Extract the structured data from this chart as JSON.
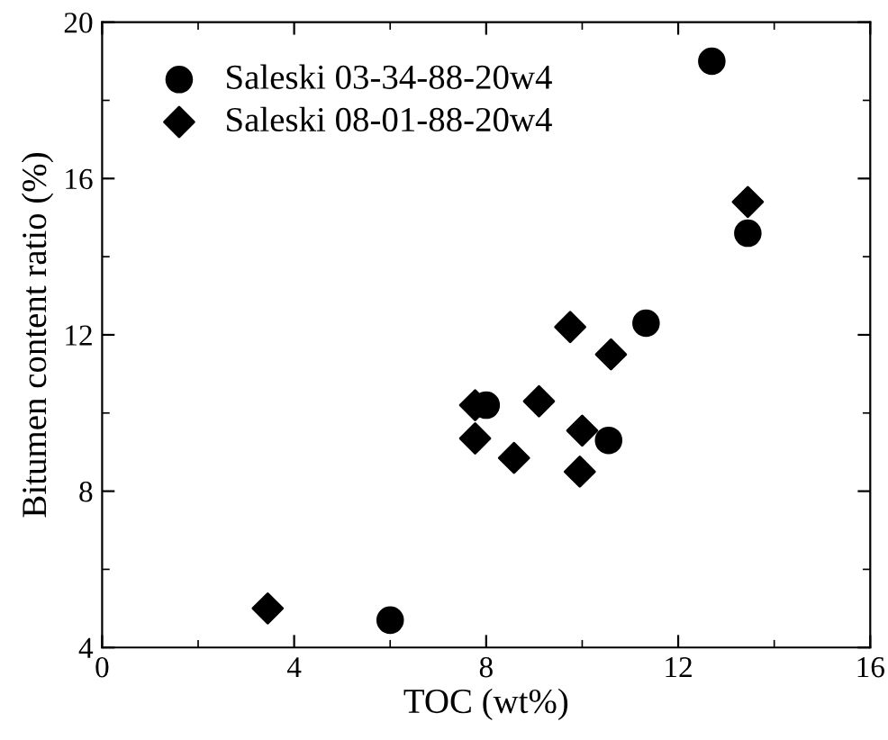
{
  "chart_data": {
    "type": "scatter",
    "xlabel": "TOC (wt%)",
    "ylabel": "Bitumen content ratio (%)",
    "xlim": [
      0,
      16
    ],
    "xticks": [
      0,
      4,
      8,
      12,
      16
    ],
    "ylim": [
      4,
      20
    ],
    "yticks": [
      4,
      8,
      12,
      16,
      20
    ],
    "grid": false,
    "legend": "top left",
    "series": [
      {
        "name": "Saleski 03-34-88-20w4",
        "color": "#000000",
        "marker": "circle",
        "x": [
          12.7,
          13.45,
          11.33,
          8.0,
          10.55,
          6.0
        ],
        "values": [
          19.0,
          14.6,
          12.3,
          10.2,
          9.3,
          4.7
        ]
      },
      {
        "name": "Saleski 08-01-88-20w4",
        "color": "#000000",
        "marker": "diamond",
        "x": [
          13.45,
          9.75,
          10.6,
          7.77,
          9.1,
          7.77,
          8.58,
          10.0,
          9.95,
          3.45
        ],
        "values": [
          15.4,
          12.2,
          11.5,
          10.2,
          10.3,
          9.35,
          8.85,
          9.55,
          8.5,
          5.0
        ]
      }
    ]
  }
}
